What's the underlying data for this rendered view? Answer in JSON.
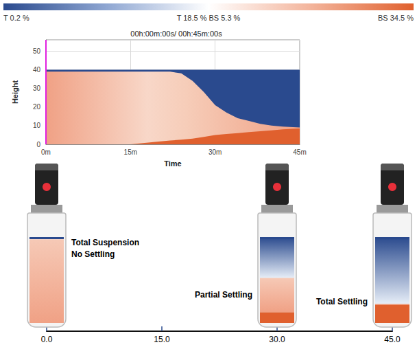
{
  "chart_data": {
    "type": "area",
    "title": "00h:00m:00s/ 00h:45m:00s",
    "x_label": "Time",
    "y_label": "Height",
    "x": [
      0,
      5,
      10,
      15,
      20,
      22,
      24,
      26,
      28,
      30,
      32,
      34,
      36,
      38,
      40,
      42,
      45
    ],
    "series": [
      {
        "color": "#2a4a8e",
        "values": [
          40,
          40,
          40,
          40,
          40,
          40,
          40,
          40,
          40,
          40,
          40,
          40,
          40,
          40,
          40,
          40,
          40
        ]
      },
      {
        "color": "#f0a185",
        "values": [
          39,
          39,
          39,
          39,
          39,
          39,
          38,
          34,
          28,
          21,
          17,
          14,
          12.5,
          11,
          10,
          9.5,
          9
        ]
      },
      {
        "color": "#e0602e",
        "values": [
          0,
          0,
          0,
          0,
          1.5,
          2,
          2.5,
          3,
          4,
          5,
          5.5,
          6,
          6.5,
          7,
          7.5,
          8,
          8.5
        ]
      }
    ],
    "xlim": [
      0,
      45
    ],
    "xticks": [
      {
        "value": 0,
        "label": "0m"
      },
      {
        "value": 15,
        "label": "15m"
      },
      {
        "value": 30,
        "label": "30m"
      },
      {
        "value": 45,
        "label": "45m"
      }
    ],
    "ylim": [
      0,
      56
    ],
    "yticks": [
      0,
      10,
      20,
      30,
      40,
      50
    ],
    "grid": true,
    "time_cursor": 0,
    "colorbar": {
      "labels": [
        "T 0.2 %",
        "T 18.5 % BS 5.3 %",
        "BS 34.5 %"
      ]
    }
  },
  "timeline": {
    "xlim": [
      0,
      45
    ],
    "xticks": [
      {
        "value": 0,
        "label": "0.0"
      },
      {
        "value": 15,
        "label": "15.0"
      },
      {
        "value": 30,
        "label": "30.0"
      },
      {
        "value": 45,
        "label": "45.0"
      }
    ],
    "vials": [
      {
        "time": 0,
        "label": "Total Suspension No Settling"
      },
      {
        "time": 30,
        "label": "Partial Settling"
      },
      {
        "time": 45,
        "label": "Total Settling"
      }
    ]
  }
}
